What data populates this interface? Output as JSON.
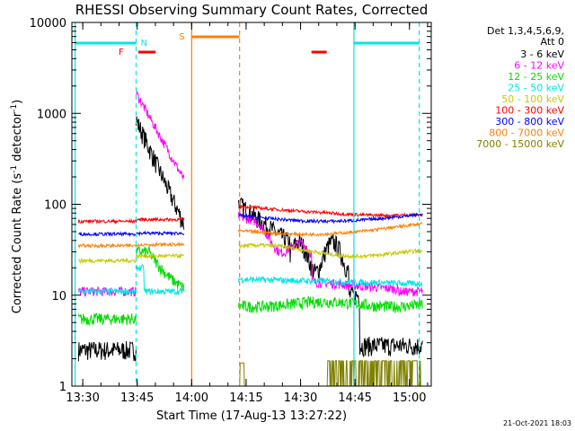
{
  "chart_data": {
    "type": "line",
    "title": "RHESSI Observing Summary Count Rates, Corrected",
    "xlabel": "Start Time (17-Aug-13 13:27:22)",
    "ylabel": "Corrected Count Rate (s",
    "ylabel_sup": "-1",
    "ylabel_mid": " detector",
    "ylabel_sup2": "-1",
    "ylabel_end": ")",
    "y_scale": "log",
    "ylim": [
      1,
      10000
    ],
    "xlim_minutes": [
      13.45,
      15.1
    ],
    "x_ticks": [
      {
        "label": "13:30",
        "h": 13.5
      },
      {
        "label": "13:45",
        "h": 13.75
      },
      {
        "label": "14:00",
        "h": 14.0
      },
      {
        "label": "14:15",
        "h": 14.25
      },
      {
        "label": "14:30",
        "h": 14.5
      },
      {
        "label": "14:45",
        "h": 14.75
      },
      {
        "label": "15:00",
        "h": 15.0
      }
    ],
    "y_ticks": [
      {
        "label": "1",
        "v": 1
      },
      {
        "label": "10",
        "v": 10
      },
      {
        "label": "100",
        "v": 100
      },
      {
        "label": "1000",
        "v": 1000
      },
      {
        "label": "10000",
        "v": 10000
      }
    ],
    "legend_header": [
      "Det 1,3,4,5,6,9,",
      "Att 0"
    ],
    "legend_placement": "right",
    "series": [
      {
        "name": "3 - 6 keV",
        "color": "#000000"
      },
      {
        "name": "6 - 12 keV",
        "color": "#ff00ff"
      },
      {
        "name": "12 - 25 keV",
        "color": "#00dd00"
      },
      {
        "name": "25 - 50 keV",
        "color": "#00e5e5"
      },
      {
        "name": "50 - 100 keV",
        "color": "#c8c800"
      },
      {
        "name": "100 - 300 keV",
        "color": "#ff0000"
      },
      {
        "name": "300 - 800 keV",
        "color": "#0000ff"
      },
      {
        "name": "800 - 7000 keV",
        "color": "#ff8000"
      },
      {
        "name": "7000 - 15000 keV",
        "color": "#808000"
      }
    ],
    "flags": {
      "night_label": "N",
      "flare_label": "F",
      "saa_label": "S"
    },
    "footer": "21-Oct-2021 18:03"
  }
}
